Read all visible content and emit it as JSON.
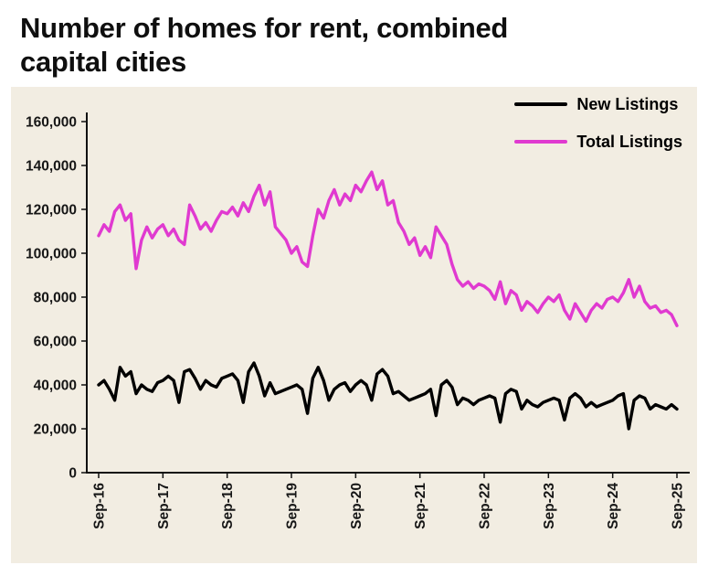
{
  "page": {
    "title_lines": [
      "Number of homes for rent, combined",
      "capital cities"
    ]
  },
  "colors": {
    "panel_bg": "#f2ede2",
    "axis": "#111111",
    "new_listings": "#000000",
    "total_listings": "#e03ad0"
  },
  "legend": [
    {
      "label": "New Listings"
    },
    {
      "label": "Total Listings"
    }
  ],
  "chart_data": {
    "type": "line",
    "title": "Number of homes for rent, combined capital cities",
    "xlabel": "",
    "ylabel": "",
    "grid": false,
    "legend_position": "upper right",
    "ylim": [
      0,
      160000
    ],
    "yticks": {
      "values": [
        0,
        20000,
        40000,
        60000,
        80000,
        100000,
        120000,
        140000,
        160000
      ],
      "labels": [
        "0",
        "20,000",
        "40,000",
        "60,000",
        "80,000",
        "100,000",
        "120,000",
        "140,000",
        "160,000"
      ]
    },
    "xticks": {
      "indexes": [
        0,
        12,
        24,
        36,
        48,
        60,
        72,
        84,
        96,
        108
      ],
      "labels": [
        "Sep-16",
        "Sep-17",
        "Sep-18",
        "Sep-19",
        "Sep-20",
        "Sep-21",
        "Sep-22",
        "Sep-23",
        "Sep-24",
        "Sep-25"
      ]
    },
    "x": [
      "Sep-16",
      "Oct-16",
      "Nov-16",
      "Dec-16",
      "Jan-17",
      "Feb-17",
      "Mar-17",
      "Apr-17",
      "May-17",
      "Jun-17",
      "Jul-17",
      "Aug-17",
      "Sep-17",
      "Oct-17",
      "Nov-17",
      "Dec-17",
      "Jan-18",
      "Feb-18",
      "Mar-18",
      "Apr-18",
      "May-18",
      "Jun-18",
      "Jul-18",
      "Aug-18",
      "Sep-18",
      "Oct-18",
      "Nov-18",
      "Dec-18",
      "Jan-19",
      "Feb-19",
      "Mar-19",
      "Apr-19",
      "May-19",
      "Jun-19",
      "Jul-19",
      "Aug-19",
      "Sep-19",
      "Oct-19",
      "Nov-19",
      "Dec-19",
      "Jan-20",
      "Feb-20",
      "Mar-20",
      "Apr-20",
      "May-20",
      "Jun-20",
      "Jul-20",
      "Aug-20",
      "Sep-20",
      "Oct-20",
      "Nov-20",
      "Dec-20",
      "Jan-21",
      "Feb-21",
      "Mar-21",
      "Apr-21",
      "May-21",
      "Jun-21",
      "Jul-21",
      "Aug-21",
      "Sep-21",
      "Oct-21",
      "Nov-21",
      "Dec-21",
      "Jan-22",
      "Feb-22",
      "Mar-22",
      "Apr-22",
      "May-22",
      "Jun-22",
      "Jul-22",
      "Aug-22",
      "Sep-22",
      "Oct-22",
      "Nov-22",
      "Dec-22",
      "Jan-23",
      "Feb-23",
      "Mar-23",
      "Apr-23",
      "May-23",
      "Jun-23",
      "Jul-23",
      "Aug-23",
      "Sep-23",
      "Oct-23",
      "Nov-23",
      "Dec-23",
      "Jan-24",
      "Feb-24",
      "Mar-24",
      "Apr-24",
      "May-24",
      "Jun-24",
      "Jul-24",
      "Aug-24",
      "Sep-24",
      "Oct-24",
      "Nov-24",
      "Dec-24",
      "Jan-25",
      "Feb-25",
      "Mar-25",
      "Apr-25",
      "May-25",
      "Jun-25",
      "Jul-25",
      "Aug-25",
      "Sep-25"
    ],
    "series": [
      {
        "name": "New Listings",
        "color": "#000000",
        "values": [
          40000,
          42000,
          38000,
          33000,
          48000,
          44000,
          46000,
          36000,
          40000,
          38000,
          37000,
          41000,
          42000,
          44000,
          42000,
          32000,
          46000,
          47000,
          43000,
          38000,
          42000,
          40000,
          39000,
          43000,
          44000,
          45000,
          42000,
          32000,
          46000,
          50000,
          44000,
          35000,
          41000,
          36000,
          37000,
          38000,
          39000,
          40000,
          38000,
          27000,
          43000,
          48000,
          42000,
          33000,
          38000,
          40000,
          41000,
          37000,
          40000,
          42000,
          40000,
          33000,
          45000,
          47000,
          44000,
          36000,
          37000,
          35000,
          33000,
          34000,
          35000,
          36000,
          38000,
          26000,
          40000,
          42000,
          39000,
          31000,
          34000,
          33000,
          31000,
          33000,
          34000,
          35000,
          34000,
          23000,
          36000,
          38000,
          37000,
          29000,
          33000,
          31000,
          30000,
          32000,
          33000,
          34000,
          33000,
          24000,
          34000,
          36000,
          34000,
          30000,
          32000,
          30000,
          31000,
          32000,
          33000,
          35000,
          36000,
          20000,
          33000,
          35000,
          34000,
          29000,
          31000,
          30000,
          29000,
          31000,
          29000
        ]
      },
      {
        "name": "Total Listings",
        "color": "#e03ad0",
        "values": [
          108000,
          113000,
          110000,
          119000,
          122000,
          115000,
          118000,
          93000,
          106000,
          112000,
          107000,
          111000,
          113000,
          108000,
          111000,
          106000,
          104000,
          122000,
          117000,
          111000,
          114000,
          110000,
          115000,
          119000,
          118000,
          121000,
          117000,
          123000,
          119000,
          126000,
          131000,
          122000,
          128000,
          112000,
          109000,
          106000,
          100000,
          103000,
          96000,
          94000,
          108000,
          120000,
          116000,
          124000,
          129000,
          122000,
          127000,
          124000,
          131000,
          128000,
          133000,
          137000,
          129000,
          133000,
          122000,
          124000,
          114000,
          110000,
          104000,
          107000,
          99000,
          103000,
          98000,
          112000,
          108000,
          104000,
          95000,
          88000,
          85000,
          87000,
          84000,
          86000,
          85000,
          83000,
          79000,
          87000,
          77000,
          83000,
          81000,
          74000,
          78000,
          76000,
          73000,
          77000,
          80000,
          78000,
          81000,
          74000,
          70000,
          77000,
          73000,
          69000,
          74000,
          77000,
          75000,
          79000,
          80000,
          78000,
          82000,
          88000,
          80000,
          85000,
          78000,
          75000,
          76000,
          73000,
          74000,
          72000,
          67000
        ]
      }
    ]
  }
}
